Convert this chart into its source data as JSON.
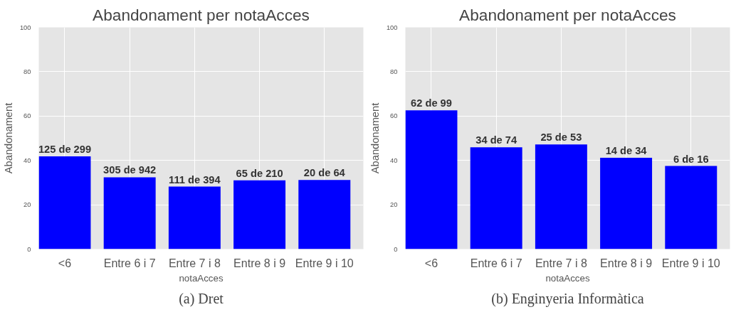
{
  "chart_data": [
    {
      "type": "bar",
      "title": "Abandonament per notaAcces",
      "xlabel": "notaAcces",
      "ylabel": "Abandonament",
      "categories": [
        "<6",
        "Entre 6 i 7",
        "Entre 7 i 8",
        "Entre 8 i 9",
        "Entre 9 i 10"
      ],
      "values": [
        41.8,
        32.4,
        28.2,
        31.0,
        31.2
      ],
      "color": "#0000ff",
      "ylim": [
        0,
        100
      ],
      "yticks": [
        0,
        20,
        40,
        60,
        80,
        100
      ],
      "grid": true,
      "annotations": [
        {
          "text": "125 de 299",
          "x": "<6",
          "y": 41.8
        },
        {
          "text": "305 de 942",
          "x": "Entre 6 i 7",
          "y": 32.4
        },
        {
          "text": "111 de 394",
          "x": "Entre 7 i 8",
          "y": 28.2
        },
        {
          "text": "65 de 210",
          "x": "Entre 8 i 9",
          "y": 31.0
        },
        {
          "text": "20 de 64",
          "x": "Entre 9 i 10",
          "y": 31.2
        },
        "(a) Dret"
      ]
    },
    {
      "type": "bar",
      "title": "Abandonament per notaAcces",
      "xlabel": "notaAcces",
      "ylabel": "Abandonament",
      "categories": [
        "<6",
        "Entre 6 i 7",
        "Entre 7 i 8",
        "Entre 8 i 9",
        "Entre 9 i 10"
      ],
      "values": [
        62.6,
        45.9,
        47.2,
        41.2,
        37.5
      ],
      "color": "#0000ff",
      "ylim": [
        0,
        100
      ],
      "yticks": [
        0,
        20,
        40,
        60,
        80,
        100
      ],
      "grid": true,
      "annotations": [
        {
          "text": "62 de 99",
          "x": "<6",
          "y": 62.6
        },
        {
          "text": "34 de 74",
          "x": "Entre 6 i 7",
          "y": 45.9
        },
        {
          "text": "25 de 53",
          "x": "Entre 7 i 8",
          "y": 47.2
        },
        {
          "text": "14 de 34",
          "x": "Entre 8 i 9",
          "y": 41.2
        },
        {
          "text": "6 de 16",
          "x": "Entre 9 i 10",
          "y": 37.5
        },
        "(b) Enginyeria Informàtica"
      ]
    }
  ]
}
